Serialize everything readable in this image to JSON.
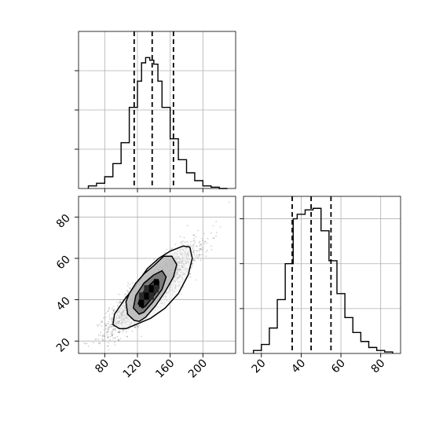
{
  "chart_data": [
    {
      "type": "histogram",
      "name": "x-marginal",
      "bin_edges": [
        60,
        70,
        80,
        90,
        100,
        110,
        120,
        125,
        130,
        135,
        140,
        145,
        150,
        160,
        170,
        180,
        190,
        200,
        210,
        220,
        230
      ],
      "counts": [
        0.02,
        0.04,
        0.09,
        0.19,
        0.35,
        0.62,
        0.82,
        0.96,
        1.0,
        0.98,
        0.95,
        0.82,
        0.62,
        0.38,
        0.22,
        0.12,
        0.06,
        0.02,
        0.01,
        0
      ],
      "quantiles": [
        116,
        138,
        164
      ],
      "xlim": [
        48,
        240
      ],
      "ylim": [
        0,
        1.2
      ],
      "ytick_values": [
        0.3,
        0.6,
        0.9
      ],
      "grid": true
    },
    {
      "type": "histogram",
      "name": "y-marginal",
      "bin_edges": [
        16,
        20,
        24,
        28,
        32,
        36,
        38,
        42,
        46,
        50,
        54,
        58,
        62,
        66,
        70,
        74,
        78,
        82,
        86
      ],
      "counts": [
        0.02,
        0.06,
        0.17,
        0.36,
        0.6,
        0.9,
        0.93,
        0.96,
        0.97,
        0.82,
        0.62,
        0.4,
        0.24,
        0.14,
        0.08,
        0.04,
        0.02,
        0.01
      ],
      "quantiles": [
        35.5,
        45,
        55
      ],
      "xlim": [
        11,
        90
      ],
      "xticks": [
        20,
        40,
        60,
        80
      ],
      "ylim": [
        0,
        1.05
      ],
      "ytick_values": [
        0.3,
        0.6,
        0.9
      ],
      "grid": true
    },
    {
      "type": "scatter",
      "name": "joint",
      "xlim": [
        48,
        240
      ],
      "ylim": [
        14,
        90
      ],
      "xticks": [
        80,
        120,
        160,
        200
      ],
      "yticks": [
        20,
        40,
        60,
        80
      ],
      "grid": true,
      "scatter": {
        "n": 2600,
        "mean_x": 138,
        "mean_y": 45,
        "sd_x": 26,
        "sd_y": 10,
        "corr": 0.88
      },
      "density_cells": [
        {
          "x": [
            128,
            134
          ],
          "y": [
            40,
            43.5
          ],
          "level": 3
        },
        {
          "x": [
            134,
            140
          ],
          "y": [
            43.5,
            47
          ],
          "level": 3
        },
        {
          "x": [
            122,
            128
          ],
          "y": [
            36.5,
            40
          ],
          "level": 3
        },
        {
          "x": [
            140,
            146
          ],
          "y": [
            47,
            50
          ],
          "level": 3
        },
        {
          "x": [
            128,
            134
          ],
          "y": [
            43.5,
            47
          ],
          "level": 2
        },
        {
          "x": [
            134,
            140
          ],
          "y": [
            40,
            43.5
          ],
          "level": 2
        },
        {
          "x": [
            122,
            128
          ],
          "y": [
            40,
            43.5
          ],
          "level": 2
        },
        {
          "x": [
            140,
            146
          ],
          "y": [
            43.5,
            47
          ],
          "level": 2
        }
      ],
      "contours": [
        {
          "level": 1,
          "points": [
            [
              116,
              30
            ],
            [
              108,
              33
            ],
            [
              106,
              39
            ],
            [
              110,
              43
            ],
            [
              118,
              48
            ],
            [
              128,
              52.5
            ],
            [
              140,
              56.5
            ],
            [
              152,
              61
            ],
            [
              162,
              61
            ],
            [
              168,
              57
            ],
            [
              164,
              51
            ],
            [
              154,
              44
            ],
            [
              142,
              37
            ],
            [
              130,
              31.5
            ],
            [
              122,
              29.5
            ]
          ]
        },
        {
          "level": 2,
          "points": [
            [
              122,
              33
            ],
            [
              115,
              36
            ],
            [
              118,
              42
            ],
            [
              128,
              48
            ],
            [
              140,
              52
            ],
            [
              150,
              54
            ],
            [
              155,
              51
            ],
            [
              150,
              45
            ],
            [
              138,
              38.5
            ],
            [
              128,
              34
            ]
          ]
        },
        {
          "level": 3,
          "points": [
            [
              126,
              36
            ],
            [
              121,
              38
            ],
            [
              124,
              42
            ],
            [
              132,
              46
            ],
            [
              140,
              49
            ],
            [
              146,
              49
            ],
            [
              146,
              45.5
            ],
            [
              138,
              41
            ],
            [
              130,
              37
            ]
          ]
        },
        {
          "level": 0,
          "points": [
            [
              98,
              26
            ],
            [
              90,
              28
            ],
            [
              92,
              33
            ],
            [
              104,
              40
            ],
            [
              118,
              47
            ],
            [
              132,
              55
            ],
            [
              146,
              60
            ],
            [
              160,
              63.5
            ],
            [
              176,
              66
            ],
            [
              184,
              65.5
            ],
            [
              187,
              60
            ],
            [
              182,
              52
            ],
            [
              170,
              43
            ],
            [
              154,
              36
            ],
            [
              136,
              31
            ],
            [
              118,
              28
            ],
            [
              106,
              26
            ]
          ]
        }
      ]
    }
  ]
}
